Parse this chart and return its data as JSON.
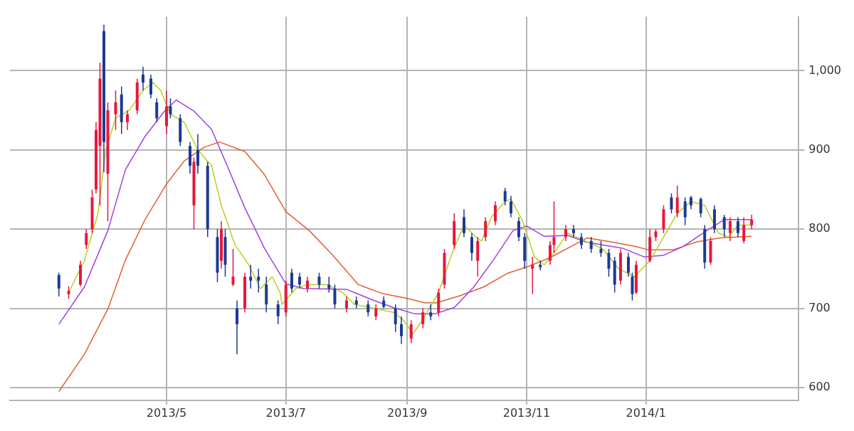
{
  "chart_data": {
    "type": "candlestick",
    "x": [
      "2013-03-07",
      "2013-03-12",
      "2013-03-18",
      "2013-03-21",
      "2013-03-24",
      "2013-03-26",
      "2013-03-28",
      "2013-03-30",
      "2013-04-01",
      "2013-04-05",
      "2013-04-08",
      "2013-04-11",
      "2013-04-16",
      "2013-04-19",
      "2013-04-23",
      "2013-04-26",
      "2013-05-01",
      "2013-05-03",
      "2013-05-08",
      "2013-05-13",
      "2013-05-15",
      "2013-05-17",
      "2013-05-22",
      "2013-05-27",
      "2013-05-29",
      "2013-05-31",
      "2013-06-04",
      "2013-06-06",
      "2013-06-10",
      "2013-06-13",
      "2013-06-17",
      "2013-06-21",
      "2013-06-27",
      "2013-07-01",
      "2013-07-04",
      "2013-07-08",
      "2013-07-12",
      "2013-07-18",
      "2013-07-23",
      "2013-07-26",
      "2013-08-01",
      "2013-08-06",
      "2013-08-12",
      "2013-08-16",
      "2013-08-20",
      "2013-08-26",
      "2013-08-29",
      "2013-09-03",
      "2013-09-09",
      "2013-09-13",
      "2013-09-17",
      "2013-09-20",
      "2013-09-25",
      "2013-09-30",
      "2013-10-04",
      "2013-10-07",
      "2013-10-11",
      "2013-10-16",
      "2013-10-21",
      "2013-10-24",
      "2013-10-28",
      "2013-10-31",
      "2013-11-04",
      "2013-11-08",
      "2013-11-13",
      "2013-11-15",
      "2013-11-21",
      "2013-11-25",
      "2013-11-29",
      "2013-12-04",
      "2013-12-09",
      "2013-12-13",
      "2013-12-16",
      "2013-12-19",
      "2013-12-23",
      "2013-12-25",
      "2013-12-27",
      "2014-01-03",
      "2014-01-06",
      "2014-01-10",
      "2014-01-14",
      "2014-01-17",
      "2014-01-21",
      "2014-01-24",
      "2014-01-29",
      "2014-01-31",
      "2014-02-03",
      "2014-02-05",
      "2014-02-10",
      "2014-02-13",
      "2014-02-17",
      "2014-02-20",
      "2014-02-24"
    ],
    "ohlc": [
      [
        742,
        745,
        715,
        725
      ],
      [
        718,
        728,
        712,
        722
      ],
      [
        730,
        760,
        728,
        755
      ],
      [
        780,
        800,
        775,
        795
      ],
      [
        800,
        850,
        795,
        840
      ],
      [
        850,
        935,
        845,
        925
      ],
      [
        905,
        1010,
        830,
        990
      ],
      [
        1050,
        1058,
        872,
        910
      ],
      [
        870,
        960,
        810,
        950
      ],
      [
        945,
        975,
        925,
        960
      ],
      [
        970,
        980,
        920,
        935
      ],
      [
        935,
        950,
        925,
        945
      ],
      [
        950,
        990,
        945,
        985
      ],
      [
        995,
        1005,
        975,
        985
      ],
      [
        990,
        995,
        965,
        970
      ],
      [
        960,
        965,
        935,
        940
      ],
      [
        930,
        975,
        920,
        955
      ],
      [
        955,
        965,
        940,
        945
      ],
      [
        940,
        945,
        905,
        910
      ],
      [
        905,
        910,
        870,
        880
      ],
      [
        830,
        890,
        800,
        885
      ],
      [
        900,
        920,
        870,
        880
      ],
      [
        880,
        885,
        790,
        800
      ],
      [
        790,
        800,
        733,
        745
      ],
      [
        760,
        810,
        750,
        800
      ],
      [
        790,
        800,
        740,
        755
      ],
      [
        730,
        775,
        728,
        740
      ],
      [
        700,
        710,
        642,
        680
      ],
      [
        700,
        745,
        695,
        740
      ],
      [
        740,
        755,
        725,
        735
      ],
      [
        740,
        750,
        720,
        735
      ],
      [
        730,
        740,
        695,
        705
      ],
      [
        705,
        710,
        680,
        690
      ],
      [
        695,
        735,
        690,
        730
      ],
      [
        745,
        750,
        720,
        725
      ],
      [
        740,
        745,
        725,
        730
      ],
      [
        725,
        740,
        720,
        735
      ],
      [
        740,
        745,
        725,
        730
      ],
      [
        730,
        740,
        720,
        725
      ],
      [
        725,
        730,
        700,
        705
      ],
      [
        700,
        715,
        695,
        710
      ],
      [
        710,
        715,
        700,
        705
      ],
      [
        705,
        710,
        690,
        695
      ],
      [
        690,
        705,
        685,
        700
      ],
      [
        710,
        715,
        700,
        702
      ],
      [
        700,
        705,
        670,
        680
      ],
      [
        680,
        690,
        655,
        665
      ],
      [
        662,
        685,
        656,
        680
      ],
      [
        680,
        700,
        675,
        695
      ],
      [
        695,
        705,
        685,
        690
      ],
      [
        695,
        725,
        690,
        720
      ],
      [
        730,
        775,
        725,
        770
      ],
      [
        780,
        820,
        775,
        810
      ],
      [
        815,
        825,
        790,
        795
      ],
      [
        790,
        795,
        760,
        770
      ],
      [
        760,
        790,
        740,
        785
      ],
      [
        790,
        815,
        785,
        810
      ],
      [
        810,
        835,
        805,
        830
      ],
      [
        848,
        852,
        830,
        835
      ],
      [
        835,
        842,
        815,
        820
      ],
      [
        810,
        815,
        785,
        790
      ],
      [
        790,
        795,
        750,
        760
      ],
      [
        750,
        765,
        718,
        755
      ],
      [
        755,
        760,
        748,
        752
      ],
      [
        760,
        785,
        755,
        780
      ],
      [
        780,
        835,
        770,
        790
      ],
      [
        790,
        805,
        785,
        800
      ],
      [
        800,
        805,
        790,
        795
      ],
      [
        790,
        795,
        775,
        780
      ],
      [
        785,
        790,
        770,
        775
      ],
      [
        775,
        785,
        765,
        770
      ],
      [
        770,
        775,
        740,
        750
      ],
      [
        760,
        765,
        720,
        730
      ],
      [
        735,
        775,
        730,
        770
      ],
      [
        765,
        770,
        740,
        745
      ],
      [
        740,
        745,
        710,
        718
      ],
      [
        720,
        760,
        718,
        755
      ],
      [
        760,
        800,
        758,
        790
      ],
      [
        790,
        800,
        785,
        797
      ],
      [
        800,
        830,
        795,
        825
      ],
      [
        840,
        845,
        820,
        825
      ],
      [
        820,
        855,
        815,
        840
      ],
      [
        835,
        840,
        805,
        815
      ],
      [
        840,
        842,
        825,
        830
      ],
      [
        838,
        840,
        815,
        820
      ],
      [
        800,
        805,
        750,
        758
      ],
      [
        758,
        790,
        755,
        785
      ],
      [
        825,
        830,
        795,
        800
      ],
      [
        815,
        818,
        790,
        800
      ],
      [
        795,
        815,
        785,
        810
      ],
      [
        810,
        815,
        790,
        795
      ],
      [
        785,
        815,
        782,
        805
      ],
      [
        805,
        818,
        800,
        812
      ]
    ],
    "colors": [
      "#1b3a92",
      "#e8173c",
      "#e8173c",
      "#e8173c",
      "#e8173c",
      "#e8173c",
      "#e8173c",
      "#1b3a92",
      "#e8173c",
      "#e8173c",
      "#1b3a92",
      "#e8173c",
      "#e8173c",
      "#1b3a92",
      "#1b3a92",
      "#1b3a92",
      "#e8173c",
      "#1b3a92",
      "#1b3a92",
      "#1b3a92",
      "#e8173c",
      "#1b3a92",
      "#1b3a92",
      "#1b3a92",
      "#e8173c",
      "#1b3a92",
      "#e8173c",
      "#1b3a92",
      "#e8173c",
      "#1b3a92",
      "#1b3a92",
      "#1b3a92",
      "#1b3a92",
      "#e8173c",
      "#1b3a92",
      "#1b3a92",
      "#e8173c",
      "#1b3a92",
      "#1b3a92",
      "#1b3a92",
      "#e8173c",
      "#1b3a92",
      "#1b3a92",
      "#e8173c",
      "#1b3a92",
      "#1b3a92",
      "#1b3a92",
      "#e8173c",
      "#e8173c",
      "#1b3a92",
      "#e8173c",
      "#e8173c",
      "#e8173c",
      "#1b3a92",
      "#1b3a92",
      "#e8173c",
      "#e8173c",
      "#e8173c",
      "#1b3a92",
      "#1b3a92",
      "#1b3a92",
      "#1b3a92",
      "#e8173c",
      "#1b3a92",
      "#e8173c",
      "#e8173c",
      "#e8173c",
      "#1b3a92",
      "#1b3a92",
      "#1b3a92",
      "#1b3a92",
      "#1b3a92",
      "#1b3a92",
      "#e8173c",
      "#1b3a92",
      "#1b3a92",
      "#e8173c",
      "#e8173c",
      "#e8173c",
      "#e8173c",
      "#1b3a92",
      "#e8173c",
      "#1b3a92",
      "#1b3a92",
      "#1b3a92",
      "#1b3a92",
      "#e8173c",
      "#1b3a92",
      "#1b3a92",
      "#e8173c",
      "#1b3a92",
      "#e8173c",
      "#e8173c"
    ],
    "series": [
      {
        "type": "line",
        "color": "#b8d020",
        "x": [
          "2013-03-12",
          "2013-03-20",
          "2013-03-27",
          "2013-03-31",
          "2013-04-05",
          "2013-04-12",
          "2013-04-19",
          "2013-04-24",
          "2013-04-28",
          "2013-05-03",
          "2013-05-10",
          "2013-05-17",
          "2013-05-24",
          "2013-05-29",
          "2013-06-05",
          "2013-06-12",
          "2013-06-18",
          "2013-06-24",
          "2013-06-28",
          "2013-06-29",
          "2013-07-06",
          "2013-07-12",
          "2013-07-22",
          "2013-07-30",
          "2013-08-05",
          "2013-08-15",
          "2013-08-25",
          "2013-08-30",
          "2013-09-04",
          "2013-09-10",
          "2013-09-17",
          "2013-09-24",
          "2013-09-30",
          "2013-10-06",
          "2013-10-09",
          "2013-10-14",
          "2013-10-21",
          "2013-10-24",
          "2013-10-30",
          "2013-11-05",
          "2013-11-10",
          "2013-11-15",
          "2013-11-22",
          "2013-12-01",
          "2013-12-10",
          "2013-12-18",
          "2013-12-26",
          "2014-01-03",
          "2014-01-10",
          "2014-01-17",
          "2014-01-24",
          "2014-01-31",
          "2014-02-07",
          "2014-02-12",
          "2014-02-17",
          "2014-02-24"
        ],
        "values": [
          720,
          760,
          820,
          900,
          940,
          950,
          975,
          985,
          975,
          945,
          935,
          900,
          880,
          830,
          780,
          755,
          725,
          740,
          720,
          705,
          725,
          730,
          730,
          720,
          705,
          700,
          695,
          685,
          668,
          690,
          720,
          770,
          805,
          790,
          785,
          815,
          835,
          838,
          810,
          765,
          755,
          770,
          795,
          785,
          775,
          750,
          740,
          760,
          790,
          820,
          835,
          830,
          795,
          790,
          805,
          805
        ]
      },
      {
        "type": "line",
        "color": "#a040e0",
        "x": [
          "2013-03-07",
          "2013-03-20",
          "2013-04-01",
          "2013-04-10",
          "2013-04-20",
          "2013-04-30",
          "2013-05-06",
          "2013-05-15",
          "2013-05-24",
          "2013-06-01",
          "2013-06-10",
          "2013-06-20",
          "2013-07-01",
          "2013-07-10",
          "2013-08-01",
          "2013-08-15",
          "2013-08-25",
          "2013-09-05",
          "2013-09-15",
          "2013-09-25",
          "2013-10-05",
          "2013-10-15",
          "2013-10-25",
          "2013-11-01",
          "2013-11-10",
          "2013-11-22",
          "2013-12-01",
          "2013-12-10",
          "2013-12-20",
          "2013-12-31",
          "2014-01-10",
          "2014-01-20",
          "2014-02-01",
          "2014-02-10",
          "2014-02-24"
        ],
        "values": [
          680,
          727,
          798,
          875,
          917,
          949,
          963,
          949,
          926,
          880,
          827,
          776,
          731,
          725,
          724,
          710,
          701,
          693,
          693,
          701,
          727,
          761,
          798,
          804,
          791,
          792,
          784,
          780,
          776,
          765,
          767,
          778,
          798,
          812,
          812
        ]
      },
      {
        "type": "line",
        "color": "#e06030",
        "x": [
          "2013-03-07",
          "2013-03-20",
          "2013-04-01",
          "2013-04-10",
          "2013-04-20",
          "2013-05-01",
          "2013-05-10",
          "2013-05-20",
          "2013-05-28",
          "2013-06-10",
          "2013-06-20",
          "2013-07-01",
          "2013-07-13",
          "2013-07-25",
          "2013-08-07",
          "2013-08-19",
          "2013-08-31",
          "2013-09-10",
          "2013-09-16",
          "2013-09-28",
          "2013-10-10",
          "2013-10-22",
          "2013-11-02",
          "2013-11-13",
          "2013-12-02",
          "2013-12-14",
          "2013-12-27",
          "2014-01-02",
          "2014-01-15",
          "2014-01-27",
          "2014-02-08",
          "2014-02-24"
        ],
        "values": [
          595,
          642,
          699,
          761,
          812,
          857,
          886,
          903,
          910,
          898,
          869,
          822,
          798,
          767,
          730,
          719,
          713,
          707,
          707,
          716,
          727,
          744,
          753,
          764,
          789,
          784,
          778,
          774,
          774,
          784,
          789,
          791
        ]
      }
    ],
    "xlim": [
      "2013-02-10",
      "2014-03-20"
    ],
    "ylim": [
      584,
      1068
    ],
    "xticks": [
      {
        "value": "2013-05-01",
        "label": "2013/5"
      },
      {
        "value": "2013-07-01",
        "label": "2013/7"
      },
      {
        "value": "2013-09-01",
        "label": "2013/9"
      },
      {
        "value": "2013-11-01",
        "label": "2013/11"
      },
      {
        "value": "2014-01-01",
        "label": "2014/1"
      }
    ],
    "yticks": [
      600,
      700,
      800,
      900,
      {
        "value": 1000,
        "label": "1,000"
      }
    ],
    "grid": true
  }
}
